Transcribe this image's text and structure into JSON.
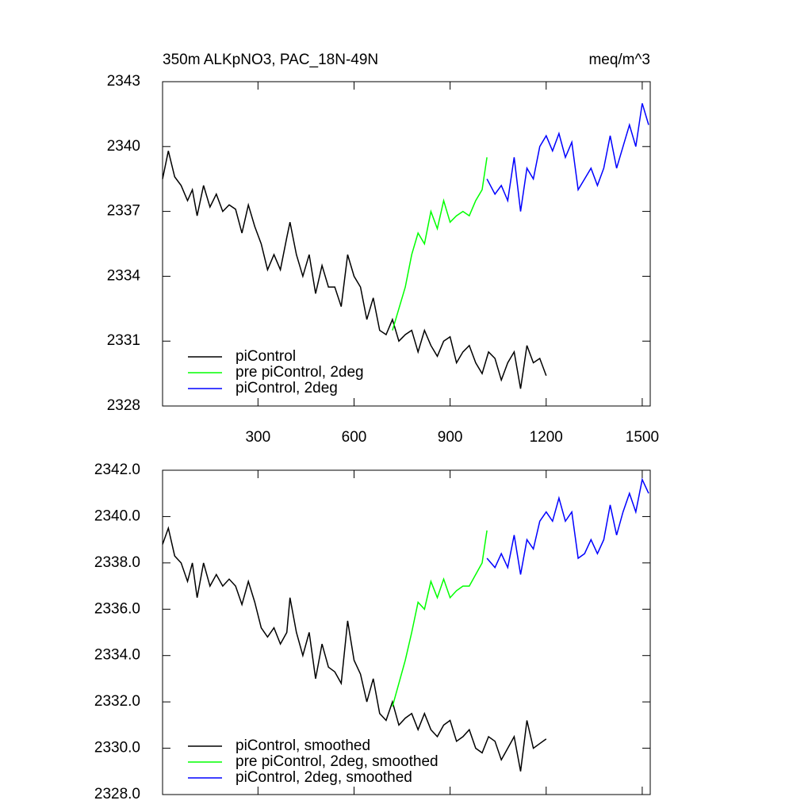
{
  "chart_data": [
    {
      "type": "line",
      "title": "350m ALKpNO3, PAC_18N-49N",
      "units": "meq/m^3",
      "xlim": [
        2,
        1525
      ],
      "xticks": [
        300,
        600,
        900,
        1200,
        1500
      ],
      "ylim": [
        2328,
        2343
      ],
      "yticks": [
        2328,
        2331,
        2334,
        2337,
        2340,
        2343
      ],
      "series": [
        {
          "name": "piControl",
          "color": "#000000",
          "x": [
            2,
            20,
            40,
            60,
            80,
            95,
            110,
            130,
            150,
            170,
            190,
            210,
            230,
            250,
            270,
            290,
            310,
            330,
            350,
            370,
            390,
            400,
            420,
            440,
            460,
            480,
            500,
            520,
            540,
            560,
            580,
            600,
            620,
            640,
            660,
            680,
            700,
            720,
            740,
            760,
            780,
            800,
            820,
            840,
            860,
            880,
            900,
            920,
            940,
            960,
            980,
            1000,
            1020,
            1040,
            1060,
            1080,
            1100,
            1120,
            1140,
            1160,
            1180,
            1200
          ],
          "values": [
            2338.5,
            2339.8,
            2338.6,
            2338.2,
            2337.5,
            2338.0,
            2336.8,
            2338.2,
            2337.2,
            2337.8,
            2337.0,
            2337.3,
            2337.1,
            2336.0,
            2337.3,
            2336.3,
            2335.5,
            2334.3,
            2335.0,
            2334.3,
            2335.8,
            2336.5,
            2335.0,
            2334.0,
            2335.0,
            2333.2,
            2334.5,
            2333.5,
            2333.5,
            2332.6,
            2335.0,
            2334.0,
            2333.5,
            2332.0,
            2333.0,
            2331.5,
            2331.3,
            2332.0,
            2331.0,
            2331.3,
            2331.5,
            2330.5,
            2331.5,
            2330.8,
            2330.3,
            2331.0,
            2331.2,
            2330.0,
            2330.5,
            2330.8,
            2330.0,
            2329.5,
            2330.5,
            2330.2,
            2329.2,
            2330.0,
            2330.5,
            2328.8,
            2330.8,
            2330.0,
            2330.2,
            2329.4
          ]
        },
        {
          "name": "pre piControl, 2deg",
          "color": "#00ff00",
          "x": [
            720,
            740,
            760,
            780,
            800,
            820,
            840,
            860,
            880,
            900,
            920,
            940,
            960,
            980,
            1000,
            1015
          ],
          "values": [
            2331.5,
            2332.5,
            2333.5,
            2335.0,
            2336.0,
            2335.5,
            2337.0,
            2336.2,
            2337.5,
            2336.5,
            2336.8,
            2337.0,
            2336.8,
            2337.5,
            2338.0,
            2339.5
          ]
        },
        {
          "name": "piControl, 2deg",
          "color": "#0000ff",
          "x": [
            1015,
            1040,
            1060,
            1080,
            1100,
            1120,
            1140,
            1160,
            1180,
            1200,
            1220,
            1240,
            1260,
            1280,
            1300,
            1320,
            1340,
            1360,
            1380,
            1400,
            1420,
            1440,
            1460,
            1480,
            1500,
            1520
          ],
          "values": [
            2338.5,
            2337.8,
            2338.2,
            2337.5,
            2339.5,
            2337.0,
            2339.0,
            2338.5,
            2340.0,
            2340.5,
            2339.8,
            2340.6,
            2339.5,
            2340.2,
            2338.0,
            2338.5,
            2339.0,
            2338.2,
            2339.0,
            2340.5,
            2339.0,
            2340.0,
            2341.0,
            2340.0,
            2342.0,
            2341.0
          ]
        }
      ]
    },
    {
      "type": "line",
      "xlim": [
        2,
        1525
      ],
      "ylim": [
        2328,
        2342
      ],
      "yticks": [
        {
          "value": 2328,
          "label": "2328.0"
        },
        {
          "value": 2330,
          "label": "2330.0"
        },
        {
          "value": 2332,
          "label": "2332.0"
        },
        {
          "value": 2334,
          "label": "2334.0"
        },
        {
          "value": 2336,
          "label": "2336.0"
        },
        {
          "value": 2338,
          "label": "2338.0"
        },
        {
          "value": 2340,
          "label": "2340.0"
        },
        {
          "value": 2342,
          "label": "2342.0"
        }
      ],
      "series": [
        {
          "name": "piControl, smoothed",
          "color": "#000000",
          "x": [
            2,
            20,
            40,
            60,
            80,
            95,
            110,
            130,
            150,
            170,
            190,
            210,
            230,
            250,
            270,
            290,
            310,
            330,
            350,
            370,
            390,
            400,
            420,
            440,
            460,
            480,
            500,
            520,
            540,
            560,
            580,
            600,
            620,
            640,
            660,
            680,
            700,
            720,
            740,
            760,
            780,
            800,
            820,
            840,
            860,
            880,
            900,
            920,
            940,
            960,
            980,
            1000,
            1020,
            1040,
            1060,
            1080,
            1100,
            1120,
            1140,
            1160,
            1180,
            1200
          ],
          "values": [
            2338.8,
            2339.5,
            2338.3,
            2338.0,
            2337.2,
            2338.0,
            2336.5,
            2338.0,
            2337.0,
            2337.5,
            2337.0,
            2337.3,
            2337.0,
            2336.2,
            2337.2,
            2336.3,
            2335.2,
            2334.8,
            2335.2,
            2334.5,
            2335.0,
            2336.5,
            2335.0,
            2334.0,
            2335.0,
            2333.0,
            2334.5,
            2333.5,
            2333.3,
            2332.8,
            2335.5,
            2333.8,
            2333.2,
            2332.0,
            2333.0,
            2331.5,
            2331.2,
            2332.0,
            2331.0,
            2331.3,
            2331.5,
            2330.8,
            2331.5,
            2330.8,
            2330.5,
            2331.0,
            2331.2,
            2330.3,
            2330.5,
            2330.8,
            2330.0,
            2329.8,
            2330.5,
            2330.3,
            2329.5,
            2330.0,
            2330.5,
            2329.0,
            2331.2,
            2330.0,
            2330.2,
            2330.4
          ]
        },
        {
          "name": "pre piControl, 2deg, smoothed",
          "color": "#00ff00",
          "x": [
            720,
            740,
            760,
            780,
            800,
            820,
            840,
            860,
            880,
            900,
            920,
            940,
            960,
            980,
            1000,
            1015
          ],
          "values": [
            2331.8,
            2332.8,
            2333.8,
            2335.0,
            2336.3,
            2336.0,
            2337.2,
            2336.5,
            2337.3,
            2336.5,
            2336.8,
            2337.0,
            2337.0,
            2337.5,
            2338.0,
            2339.4
          ]
        },
        {
          "name": "piControl, 2deg, smoothed",
          "color": "#0000ff",
          "x": [
            1015,
            1040,
            1060,
            1080,
            1100,
            1120,
            1140,
            1160,
            1180,
            1200,
            1220,
            1240,
            1260,
            1280,
            1300,
            1320,
            1340,
            1360,
            1380,
            1400,
            1420,
            1440,
            1460,
            1480,
            1500,
            1520
          ],
          "values": [
            2338.2,
            2337.8,
            2338.4,
            2337.8,
            2339.2,
            2337.5,
            2339.0,
            2338.6,
            2339.8,
            2340.2,
            2339.8,
            2340.8,
            2339.8,
            2340.2,
            2338.2,
            2338.4,
            2339.0,
            2338.4,
            2339.0,
            2340.5,
            2339.2,
            2340.2,
            2341.0,
            2340.2,
            2341.6,
            2341.0
          ]
        }
      ]
    }
  ]
}
